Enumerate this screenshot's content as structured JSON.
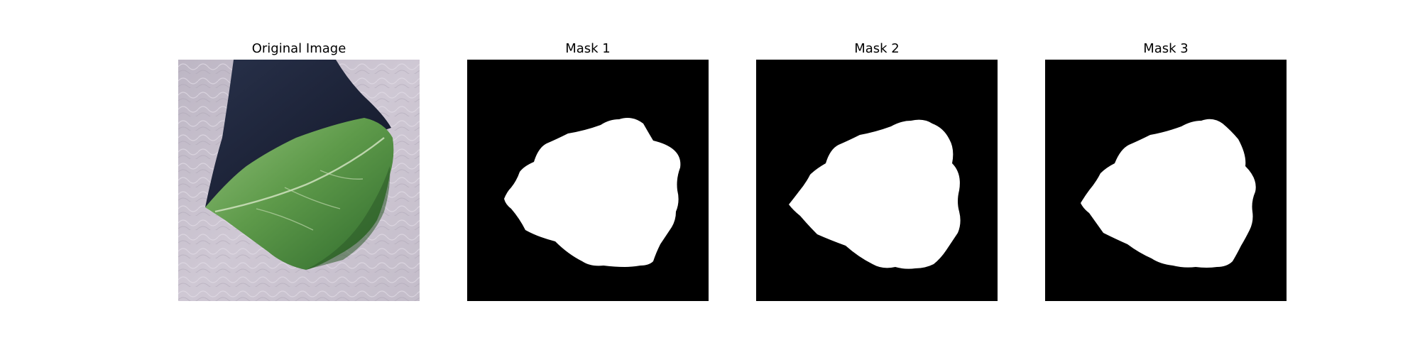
{
  "panels": [
    {
      "title": "Original Image",
      "kind": "photo"
    },
    {
      "title": "Mask 1",
      "kind": "mask"
    },
    {
      "title": "Mask 2",
      "kind": "mask"
    },
    {
      "title": "Mask 3",
      "kind": "mask"
    }
  ],
  "colors": {
    "mask_background": "#000000",
    "mask_foreground": "#ffffff",
    "leaf_green": "#5f9a4c",
    "leaf_dark": "#2f5f2a",
    "backdrop_lavender": "#c9c2cf",
    "backdrop_shadow": "#1c2235"
  }
}
